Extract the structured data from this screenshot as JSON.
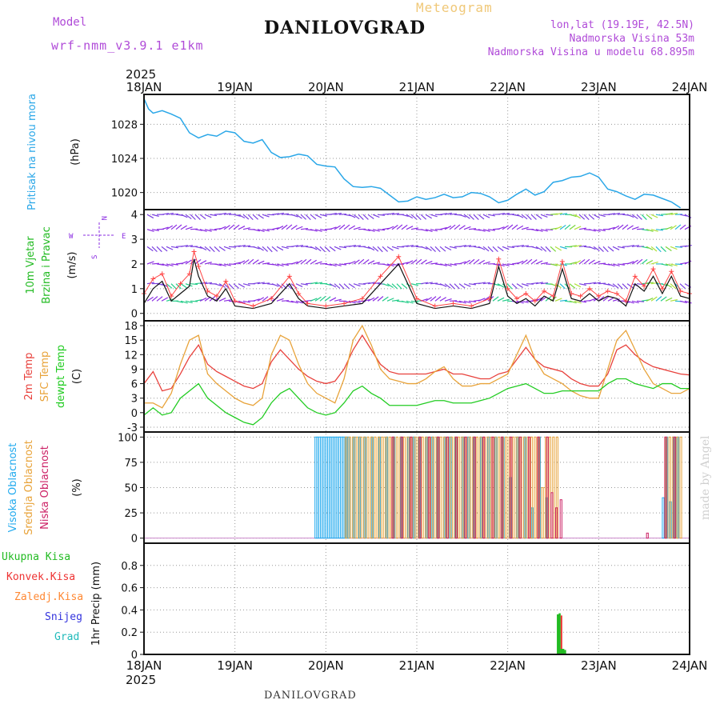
{
  "header": {
    "model_label": "Model",
    "model_name": "wrf-nmm_v3.9.1 e1km",
    "title": "DANILOVGRAD",
    "subtitle": "Meteogram",
    "lonlat": "lon,lat (19.19E, 42.5N)",
    "elevation": "Nadmorska Visina 53m",
    "model_elevation": "Nadmorska Visina u modelu 68.895m",
    "footer": "DANILOVGRAD",
    "watermark": "made by Angel"
  },
  "time_axis": {
    "year": "2025",
    "labels": [
      "18JAN",
      "19JAN",
      "20JAN",
      "21JAN",
      "22JAN",
      "23JAN",
      "24JAN"
    ]
  },
  "colors": {
    "pressure": "#2aa7e8",
    "temp2m": "#e8413c",
    "sfc_temp": "#e8a33a",
    "dewpt": "#22cc22",
    "wind_speed": "#111111",
    "wind_gust": "#ff4444",
    "high_cloud": "#22aaee",
    "mid_cloud": "#e8a33a",
    "low_cloud": "#cc2266",
    "total_precip": "#22bb22",
    "conv_precip": "#ee3333",
    "freezing_precip": "#ff8833",
    "snow": "#3333dd",
    "graupel": "#22bbbb",
    "wind_barb_light": "#8a2be2",
    "wind_barb_mid": "#22ccaa"
  },
  "chart_data": [
    {
      "type": "line",
      "panel": "pressure",
      "ylabel_main": "Pritisak na nivou mora",
      "unit": "(hPa)",
      "ylim": [
        1018,
        1031.5
      ],
      "yticks": [
        "1028",
        "1024",
        "1020"
      ],
      "ytick_values": [
        1028,
        1024,
        1020
      ],
      "x_days": [
        0,
        0.05,
        0.1,
        0.2,
        0.3,
        0.4,
        0.5,
        0.6,
        0.7,
        0.8,
        0.9,
        1,
        1.1,
        1.2,
        1.3,
        1.4,
        1.5,
        1.6,
        1.7,
        1.8,
        1.9,
        2,
        2.1,
        2.2,
        2.3,
        2.4,
        2.5,
        2.6,
        2.7,
        2.8,
        2.9,
        3,
        3.1,
        3.2,
        3.3,
        3.4,
        3.5,
        3.6,
        3.7,
        3.8,
        3.9,
        4,
        4.1,
        4.2,
        4.3,
        4.4,
        4.5,
        4.6,
        4.7,
        4.8,
        4.9,
        5,
        5.1,
        5.2,
        5.3,
        5.4,
        5.5,
        5.6,
        5.7,
        5.8,
        5.9,
        6
      ],
      "series": [
        {
          "values": [
            1031.0,
            1029.8,
            1029.3,
            1029.6,
            1029.2,
            1028.7,
            1027.0,
            1026.4,
            1026.8,
            1026.6,
            1027.2,
            1027.0,
            1026.0,
            1025.8,
            1026.2,
            1024.7,
            1024.1,
            1024.2,
            1024.5,
            1024.3,
            1023.3,
            1023.1,
            1023.0,
            1021.6,
            1020.7,
            1020.6,
            1020.7,
            1020.5,
            1019.7,
            1018.9,
            1019.0,
            1019.5,
            1019.2,
            1019.4,
            1019.8,
            1019.4,
            1019.5,
            1020.0,
            1019.9,
            1019.5,
            1018.8,
            1019.1,
            1019.8,
            1020.4,
            1019.7,
            1020.1,
            1021.2,
            1021.4,
            1021.8,
            1021.9,
            1022.3,
            1021.8,
            1020.4,
            1020.1,
            1019.6,
            1019.2,
            1019.8,
            1019.7,
            1019.3,
            1018.9,
            1018.2
          ],
          "color_key": "pressure"
        }
      ]
    },
    {
      "type": "line",
      "panel": "wind",
      "ylabel_main": "10m Vjetar",
      "ylabel_sub": "Brzina i Pravac",
      "unit": "(m/s)",
      "compass": {
        "n": "N",
        "w": "W",
        "e": "E",
        "s": "S"
      },
      "ylim": [
        -0.3,
        4.2
      ],
      "yticks": [
        "0",
        "1",
        "2",
        "3",
        "4"
      ],
      "ytick_values": [
        0,
        1,
        2,
        3,
        4
      ],
      "barb_rows": [
        0.5,
        1.2,
        2.0,
        2.7,
        3.4,
        4.0
      ],
      "x_days": [
        0,
        0.1,
        0.2,
        0.3,
        0.4,
        0.5,
        0.55,
        0.6,
        0.7,
        0.8,
        0.9,
        1,
        1.2,
        1.4,
        1.6,
        1.7,
        1.8,
        2,
        2.2,
        2.4,
        2.6,
        2.8,
        3,
        3.2,
        3.4,
        3.6,
        3.8,
        3.9,
        4,
        4.1,
        4.2,
        4.3,
        4.4,
        4.5,
        4.6,
        4.7,
        4.8,
        4.9,
        5,
        5.1,
        5.2,
        5.3,
        5.4,
        5.5,
        5.6,
        5.7,
        5.8,
        5.9,
        6
      ],
      "series": [
        {
          "name": "speed",
          "values": [
            0.4,
            1.0,
            1.3,
            0.5,
            0.8,
            1.1,
            2.2,
            1.5,
            0.7,
            0.5,
            1.0,
            0.3,
            0.2,
            0.4,
            1.2,
            0.6,
            0.3,
            0.2,
            0.3,
            0.4,
            1.2,
            2.0,
            0.4,
            0.2,
            0.3,
            0.2,
            0.4,
            1.9,
            0.7,
            0.4,
            0.6,
            0.3,
            0.7,
            0.5,
            1.8,
            0.6,
            0.5,
            0.8,
            0.5,
            0.7,
            0.6,
            0.3,
            1.2,
            0.9,
            1.5,
            0.8,
            1.5,
            0.7,
            0.6
          ],
          "color_key": "wind_speed"
        },
        {
          "name": "gust",
          "values": [
            0.8,
            1.4,
            1.6,
            0.7,
            1.2,
            1.6,
            2.5,
            1.9,
            0.9,
            0.7,
            1.3,
            0.5,
            0.3,
            0.6,
            1.5,
            0.8,
            0.4,
            0.3,
            0.4,
            0.6,
            1.5,
            2.3,
            0.6,
            0.3,
            0.4,
            0.3,
            0.6,
            2.2,
            1.0,
            0.6,
            0.8,
            0.5,
            0.9,
            0.7,
            2.1,
            0.8,
            0.7,
            1.0,
            0.7,
            0.9,
            0.8,
            0.5,
            1.5,
            1.1,
            1.8,
            1.0,
            1.7,
            0.9,
            0.8
          ],
          "color_key": "wind_gust"
        }
      ]
    },
    {
      "type": "line",
      "panel": "temperature",
      "ylabel_main": "2m Temp",
      "ylabel_sub": "SFC Temp",
      "ylabel_sub2": "dewpt Temp",
      "unit": "(C)",
      "ylim": [
        -4,
        19
      ],
      "yticks": [
        "18",
        "15",
        "12",
        "9",
        "6",
        "3",
        "0",
        "-3"
      ],
      "ytick_values": [
        18,
        15,
        12,
        9,
        6,
        3,
        0,
        -3
      ],
      "x_days": [
        0,
        0.1,
        0.2,
        0.3,
        0.4,
        0.5,
        0.6,
        0.7,
        0.8,
        0.9,
        1,
        1.1,
        1.2,
        1.3,
        1.4,
        1.5,
        1.6,
        1.7,
        1.8,
        1.9,
        2,
        2.1,
        2.2,
        2.3,
        2.4,
        2.5,
        2.6,
        2.7,
        2.8,
        2.9,
        3,
        3.1,
        3.2,
        3.3,
        3.4,
        3.5,
        3.6,
        3.7,
        3.8,
        3.9,
        4,
        4.1,
        4.2,
        4.3,
        4.4,
        4.5,
        4.6,
        4.7,
        4.8,
        4.9,
        5,
        5.1,
        5.2,
        5.3,
        5.4,
        5.5,
        5.6,
        5.7,
        5.8,
        5.9,
        6
      ],
      "series": [
        {
          "name": "2m",
          "values": [
            6,
            8.5,
            4.5,
            5,
            8,
            11.5,
            14,
            10,
            8.5,
            7.5,
            6.5,
            5.5,
            5,
            6,
            10.5,
            13,
            11,
            9,
            7.5,
            6.5,
            6,
            6.5,
            9,
            13,
            16,
            13,
            10,
            8.5,
            8,
            8,
            8,
            8,
            8.5,
            9,
            8,
            8,
            7.5,
            7,
            7,
            8,
            8.5,
            11,
            13.5,
            11,
            9.5,
            9,
            8.5,
            7,
            6,
            5.5,
            5.5,
            8,
            13,
            14,
            12,
            10.5,
            9.5,
            9,
            8.5,
            8,
            7.8
          ],
          "color_key": "temp2m"
        },
        {
          "name": "sfc",
          "values": [
            2,
            2,
            1,
            4,
            10,
            15,
            16,
            8,
            6,
            4.5,
            3,
            2,
            1.5,
            3,
            12,
            16,
            15,
            10,
            6,
            4,
            3,
            2,
            7,
            15,
            18,
            14,
            9,
            7,
            6.5,
            6,
            6,
            7,
            8.5,
            9.5,
            7,
            5.5,
            5.5,
            6,
            6,
            7,
            8,
            12,
            16,
            11,
            8,
            7,
            6,
            4.5,
            3.5,
            3,
            3,
            9,
            15,
            17,
            13,
            9,
            6,
            5,
            4,
            4,
            5
          ],
          "color_key": "sfc_temp"
        },
        {
          "name": "dewpt",
          "values": [
            -0.5,
            1,
            -0.5,
            0,
            3,
            4.5,
            6,
            3,
            1.5,
            0,
            -1,
            -2,
            -2.5,
            -1,
            2,
            4,
            5,
            3,
            1,
            0,
            -0.5,
            0,
            2,
            4.5,
            5.5,
            4,
            3,
            1.5,
            1.5,
            1.5,
            1.5,
            2,
            2.5,
            2.5,
            2,
            2,
            2,
            2.5,
            3,
            4,
            5,
            5.5,
            6,
            5,
            4,
            4,
            4.5,
            4.5,
            4.5,
            4.5,
            4.5,
            6,
            7,
            7,
            6,
            5.5,
            5,
            6,
            6,
            5,
            5
          ],
          "color_key": "dewpt"
        }
      ]
    },
    {
      "type": "bar",
      "panel": "cloud",
      "ylabel_main": "Visoka Oblacnost",
      "ylabel_sub": "Srednja Oblacnost",
      "ylabel_sub2": "Niska Oblacnost",
      "unit": "(%)",
      "ylim": [
        -5,
        105
      ],
      "yticks": [
        "100",
        "75",
        "50",
        "25",
        "0"
      ],
      "ytick_values": [
        100,
        75,
        50,
        25,
        0
      ],
      "high_x_days": [
        1.88,
        1.9,
        1.92,
        1.94,
        1.96,
        1.98,
        2.0,
        2.02,
        2.04,
        2.06,
        2.08,
        2.1,
        2.12,
        2.14,
        2.16,
        2.18,
        2.2,
        2.22,
        2.24,
        2.3,
        2.36,
        2.42,
        2.5,
        2.58,
        2.66,
        2.74,
        2.82,
        2.9,
        2.96,
        3.02,
        3.1,
        3.16,
        3.22,
        3.3,
        3.36,
        3.42,
        3.5,
        3.56,
        3.62,
        3.7,
        3.78,
        3.86,
        3.94,
        4.02,
        4.1,
        4.18,
        4.26,
        4.34,
        4.42,
        5.7,
        5.74,
        5.78,
        5.82,
        5.86
      ],
      "high_values": [
        100,
        100,
        100,
        100,
        100,
        100,
        100,
        100,
        100,
        100,
        100,
        100,
        100,
        100,
        100,
        100,
        100,
        100,
        100,
        100,
        100,
        100,
        100,
        100,
        100,
        100,
        100,
        100,
        100,
        100,
        100,
        100,
        100,
        100,
        100,
        100,
        100,
        100,
        100,
        100,
        100,
        100,
        100,
        60,
        100,
        100,
        30,
        100,
        40,
        40,
        100,
        36,
        100,
        100
      ],
      "mid_x_days": [
        2.2,
        2.24,
        2.28,
        2.32,
        2.36,
        2.4,
        2.44,
        2.48,
        2.52,
        2.56,
        2.6,
        2.64,
        2.68,
        2.72,
        2.76,
        2.8,
        2.84,
        2.88,
        2.92,
        2.96,
        3.0,
        3.04,
        3.08,
        3.12,
        3.16,
        3.2,
        3.24,
        3.28,
        3.32,
        3.36,
        3.4,
        3.44,
        3.48,
        3.52,
        3.56,
        3.6,
        3.64,
        3.68,
        3.72,
        3.76,
        3.8,
        3.84,
        3.88,
        3.92,
        3.96,
        4.0,
        4.04,
        4.08,
        4.12,
        4.16,
        4.2,
        4.24,
        4.28,
        4.32,
        4.36,
        4.4,
        4.44,
        4.48,
        4.52,
        5.72,
        5.76,
        5.8,
        5.84,
        5.88
      ],
      "mid_values": [
        100,
        100,
        100,
        100,
        100,
        100,
        100,
        100,
        100,
        100,
        100,
        100,
        100,
        100,
        100,
        100,
        100,
        100,
        100,
        100,
        100,
        100,
        100,
        100,
        100,
        100,
        100,
        100,
        100,
        100,
        100,
        100,
        100,
        100,
        100,
        100,
        100,
        100,
        100,
        100,
        100,
        100,
        100,
        100,
        100,
        100,
        100,
        100,
        100,
        100,
        100,
        100,
        100,
        100,
        50,
        100,
        100,
        100,
        100,
        100,
        100,
        100,
        100,
        100
      ],
      "low_x_days": [
        2.7,
        2.8,
        2.9,
        3.0,
        3.1,
        3.2,
        3.3,
        3.4,
        3.5,
        3.6,
        3.7,
        3.8,
        3.9,
        4.0,
        4.1,
        4.2,
        4.3,
        4.4,
        4.45,
        4.5,
        4.55,
        5.5,
        5.7,
        5.8
      ],
      "low_values": [
        100,
        100,
        100,
        100,
        100,
        100,
        100,
        100,
        100,
        100,
        100,
        100,
        100,
        100,
        100,
        100,
        100,
        100,
        45,
        30,
        38,
        5,
        100,
        100
      ]
    },
    {
      "type": "bar",
      "panel": "precip",
      "ylabel_main": "1hr Precip (mm)",
      "legend": [
        "Ukupna Kisa",
        "Konvek.Kisa",
        "Zaledj.Kisa",
        "Snijeg",
        "Grad"
      ],
      "ylim": [
        0,
        1.0
      ],
      "yticks": [
        "0.8",
        "0.6",
        "0.4",
        "0.2",
        "0"
      ],
      "ytick_values": [
        0.8,
        0.6,
        0.4,
        0.2,
        0
      ],
      "x_days": [
        4.54,
        4.56,
        4.58,
        4.6,
        4.62
      ],
      "total": [
        0.36,
        0.37,
        0.05,
        0.05,
        0.04
      ],
      "convective": [
        0.0,
        0.35,
        0.0,
        0.0,
        0.0
      ]
    }
  ]
}
